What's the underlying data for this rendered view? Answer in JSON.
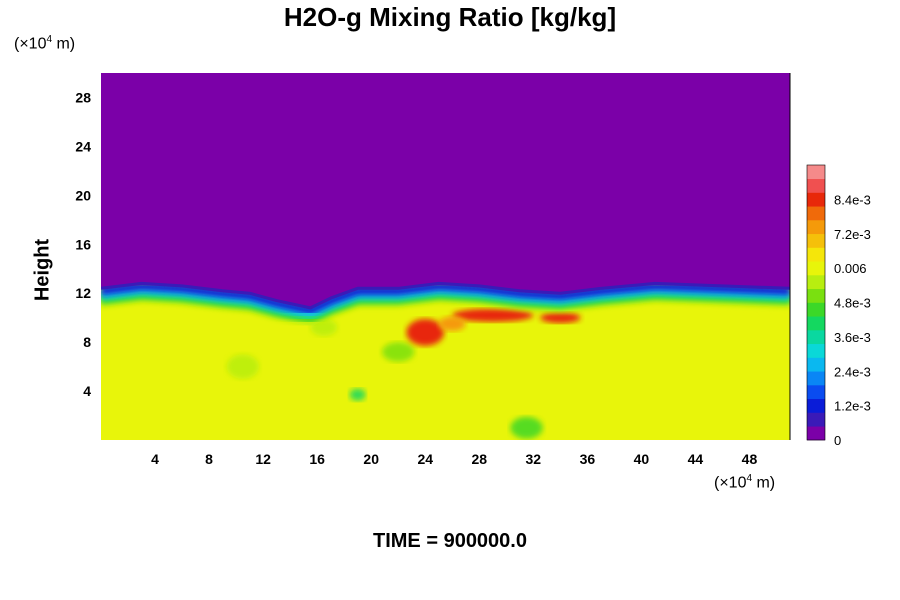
{
  "chart_data": {
    "type": "heatmap",
    "title": "H2O-g Mixing Ratio [kg/kg]",
    "ylabel": "Height",
    "y_unit_prefix": "(×10",
    "y_unit_exp": "4",
    "y_unit_suffix": " m)",
    "x_unit_prefix": "(×10",
    "x_unit_exp": "4",
    "x_unit_suffix": " m)",
    "xlim": [
      0,
      51
    ],
    "ylim": [
      0,
      30
    ],
    "x_ticks": [
      4,
      8,
      12,
      16,
      20,
      24,
      28,
      32,
      36,
      40,
      44,
      48
    ],
    "x_tick_labels": [
      "4",
      "8",
      "12",
      "16",
      "20",
      "24",
      "28",
      "32",
      "36",
      "40",
      "44",
      "48"
    ],
    "y_ticks": [
      4,
      8,
      12,
      16,
      20,
      24,
      28
    ],
    "y_tick_labels": [
      "4",
      "8",
      "12",
      "16",
      "20",
      "24",
      "28"
    ],
    "colorbar": {
      "range": [
        0,
        0.0096
      ],
      "ticks": [
        0,
        0.0012,
        0.0024,
        0.0036,
        0.0048,
        0.006,
        0.0072,
        0.0084
      ],
      "tick_labels": [
        "0",
        "1.2e-3",
        "2.4e-3",
        "3.6e-3",
        "4.8e-3",
        "0.006",
        "7.2e-3",
        "8.4e-3"
      ],
      "colors": [
        "#7b00a8",
        "#3a1ab8",
        "#0a1cd8",
        "#0a4cf0",
        "#0a86f5",
        "#0ab8f0",
        "#0ad8d8",
        "#0ad8a0",
        "#14d860",
        "#3cd828",
        "#7ae010",
        "#b8ee10",
        "#e8f50a",
        "#f5e60a",
        "#f5c00a",
        "#f59a0a",
        "#f06a0a",
        "#e8280a",
        "#f05050",
        "#f58a8a"
      ]
    },
    "boundary_height": [
      11.2,
      11.6,
      11.4,
      11.0,
      10.8,
      10.2,
      9.6,
      10.4,
      11.2,
      11.2,
      11.6,
      11.4,
      11.0,
      10.8,
      11.2,
      11.6,
      11.4,
      11.2
    ],
    "boundary_x": [
      0,
      3,
      6,
      9,
      11,
      13,
      15.5,
      17,
      19,
      22,
      25,
      28,
      31,
      34,
      37,
      41,
      46,
      51
    ],
    "upper_value": 0.0,
    "lower_value": 0.0062,
    "moist_patches": [
      {
        "x": 24,
        "y": 8.8,
        "rx": 1.4,
        "ry": 1.1,
        "value": 0.0082
      },
      {
        "x": 29,
        "y": 10.2,
        "rx": 3.0,
        "ry": 0.55,
        "value": 0.0086
      },
      {
        "x": 34,
        "y": 10.0,
        "rx": 1.5,
        "ry": 0.45,
        "value": 0.0082
      },
      {
        "x": 26,
        "y": 9.5,
        "rx": 1.0,
        "ry": 0.6,
        "value": 0.0074
      }
    ],
    "dry_patches": [
      {
        "x": 31.5,
        "y": 1.0,
        "rx": 1.2,
        "ry": 0.9,
        "value": 0.0044
      },
      {
        "x": 19,
        "y": 3.7,
        "rx": 0.6,
        "ry": 0.5,
        "value": 0.0042
      },
      {
        "x": 10.5,
        "y": 6.0,
        "rx": 1.2,
        "ry": 1.0,
        "value": 0.0054
      },
      {
        "x": 22,
        "y": 7.2,
        "rx": 1.2,
        "ry": 0.8,
        "value": 0.005
      },
      {
        "x": 16.5,
        "y": 9.2,
        "rx": 1.0,
        "ry": 0.7,
        "value": 0.0056
      }
    ],
    "time_label": "TIME = 900000.0"
  }
}
